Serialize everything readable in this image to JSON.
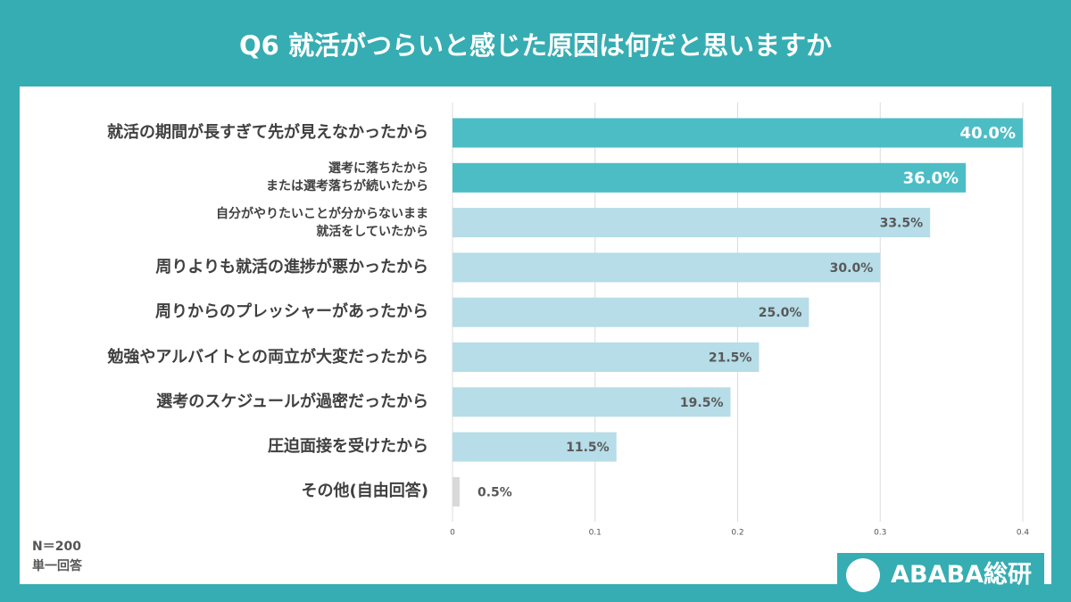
{
  "chart_data": {
    "type": "barh",
    "title": "Q6  就活がつらいと感じた原因は何だと思いますか",
    "categories": [
      "就活の期間が長すぎて先が見えなかったから",
      "選考に落ちたから\nまたは選考落ちが続いたから",
      "自分がやりたいことが分からないまま\n就活をしていたから",
      "周りよりも就活の進捗が悪かったから",
      "周りからのプレッシャーがあったから",
      "勉強やアルバイトとの両立が大変だったから",
      "選考のスケジュールが過密だったから",
      "圧迫面接を受けたから",
      "その他(自由回答)"
    ],
    "values": [
      0.4,
      0.36,
      0.335,
      0.3,
      0.25,
      0.215,
      0.195,
      0.115,
      0.005
    ],
    "value_labels": [
      "40.0%",
      "36.0%",
      "33.5%",
      "30.0%",
      "25.0%",
      "21.5%",
      "19.5%",
      "11.5%",
      "0.5%"
    ],
    "colors": [
      "#4dbdc5",
      "#4dbdc5",
      "#b6dde8",
      "#b6dde8",
      "#b6dde8",
      "#b6dde8",
      "#b6dde8",
      "#b6dde8",
      "#d9d9d9"
    ],
    "label_colors": [
      "#ffffff",
      "#ffffff",
      "#595959",
      "#595959",
      "#595959",
      "#595959",
      "#595959",
      "#595959",
      "#595959"
    ],
    "xlim": [
      0,
      0.4
    ],
    "xticks": [
      0,
      0.1,
      0.2,
      0.3,
      0.4
    ],
    "grid": true,
    "notes": [
      "N＝200",
      "単一回答"
    ],
    "brand": "ABABA総研"
  }
}
